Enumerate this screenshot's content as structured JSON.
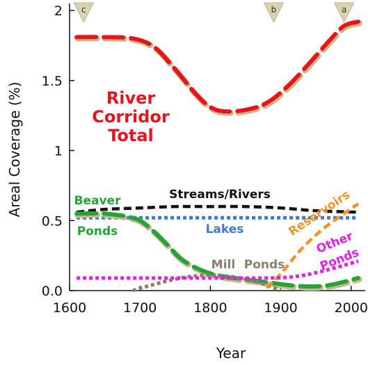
{
  "chart_data": {
    "type": "line",
    "xlabel": "Year",
    "ylabel": "Areal Coverage (%)",
    "xlim": [
      1600,
      2020
    ],
    "ylim": [
      0,
      2.05
    ],
    "x_ticks": [
      1600,
      1700,
      1800,
      1900,
      2000
    ],
    "y_ticks": [
      0.0,
      0.5,
      1,
      1.5,
      2
    ],
    "y_tick_labels": [
      "0.0",
      "0.5",
      "1",
      "1.5",
      "2"
    ],
    "series": [
      {
        "name": "River Corridor Total",
        "color": "#e8141b",
        "style": "long-dash",
        "x": [
          1610,
          1650,
          1690,
          1720,
          1750,
          1780,
          1800,
          1820,
          1850,
          1880,
          1910,
          1940,
          1970,
          1990,
          2010
        ],
        "y": [
          1.81,
          1.81,
          1.8,
          1.74,
          1.58,
          1.4,
          1.31,
          1.28,
          1.29,
          1.34,
          1.46,
          1.62,
          1.79,
          1.89,
          1.92
        ]
      },
      {
        "name": "Streams/Rivers",
        "color": "#111111",
        "style": "dash",
        "x": [
          1610,
          1650,
          1700,
          1750,
          1800,
          1850,
          1900,
          1950,
          2010
        ],
        "y": [
          0.56,
          0.58,
          0.59,
          0.6,
          0.6,
          0.6,
          0.59,
          0.57,
          0.56
        ]
      },
      {
        "name": "Lakes",
        "color": "#3b78d8",
        "style": "dot",
        "x": [
          1610,
          2010
        ],
        "y": [
          0.52,
          0.52
        ]
      },
      {
        "name": "Beaver Ponds",
        "color": "#23a33a",
        "style": "long-dash",
        "x": [
          1610,
          1650,
          1680,
          1700,
          1720,
          1740,
          1760,
          1790,
          1820,
          1850,
          1880,
          1910,
          1940,
          1970,
          2010
        ],
        "y": [
          0.55,
          0.55,
          0.53,
          0.5,
          0.42,
          0.32,
          0.22,
          0.14,
          0.1,
          0.08,
          0.06,
          0.04,
          0.03,
          0.04,
          0.09
        ]
      },
      {
        "name": "Mill Ponds",
        "color": "#8a7f6a",
        "style": "dot",
        "x": [
          1690,
          1710,
          1740,
          1770,
          1800,
          1830,
          1860,
          1880,
          1900
        ],
        "y": [
          0.0,
          0.03,
          0.07,
          0.1,
          0.11,
          0.1,
          0.07,
          0.04,
          0.0
        ]
      },
      {
        "name": "Reservoirs",
        "color": "#f29426",
        "style": "dash",
        "x": [
          1880,
          1900,
          1930,
          1960,
          1990,
          2010
        ],
        "y": [
          0.02,
          0.12,
          0.3,
          0.44,
          0.55,
          0.62
        ]
      },
      {
        "name": "Other Ponds",
        "color": "#e61de6",
        "style": "dot",
        "x": [
          1610,
          1700,
          1800,
          1880,
          1920,
          1960,
          2010
        ],
        "y": [
          0.09,
          0.09,
          0.09,
          0.09,
          0.1,
          0.14,
          0.21
        ]
      }
    ],
    "annotations": [
      {
        "text": "River",
        "color": "#e8141b"
      },
      {
        "text": "Corridor",
        "color": "#e8141b"
      },
      {
        "text": "Total",
        "color": "#e8141b"
      },
      {
        "text": "Streams/Rivers",
        "color": "#111111"
      },
      {
        "text": "Beaver",
        "color": "#23a33a"
      },
      {
        "text": "Ponds",
        "color": "#23a33a"
      },
      {
        "text": "Lakes",
        "color": "#3b78d8"
      },
      {
        "text": "Mill",
        "color": "#8a7f6a"
      },
      {
        "text": "Ponds",
        "color": "#8a7f6a"
      },
      {
        "text": "Reservoirs",
        "color": "#f29426"
      },
      {
        "text": "Other",
        "color": "#e61de6"
      },
      {
        "text": "Ponds",
        "color": "#e61de6"
      }
    ],
    "markers": [
      {
        "label": "c",
        "x": 1620
      },
      {
        "label": "b",
        "x": 1890
      },
      {
        "label": "a",
        "x": 1990
      }
    ]
  }
}
